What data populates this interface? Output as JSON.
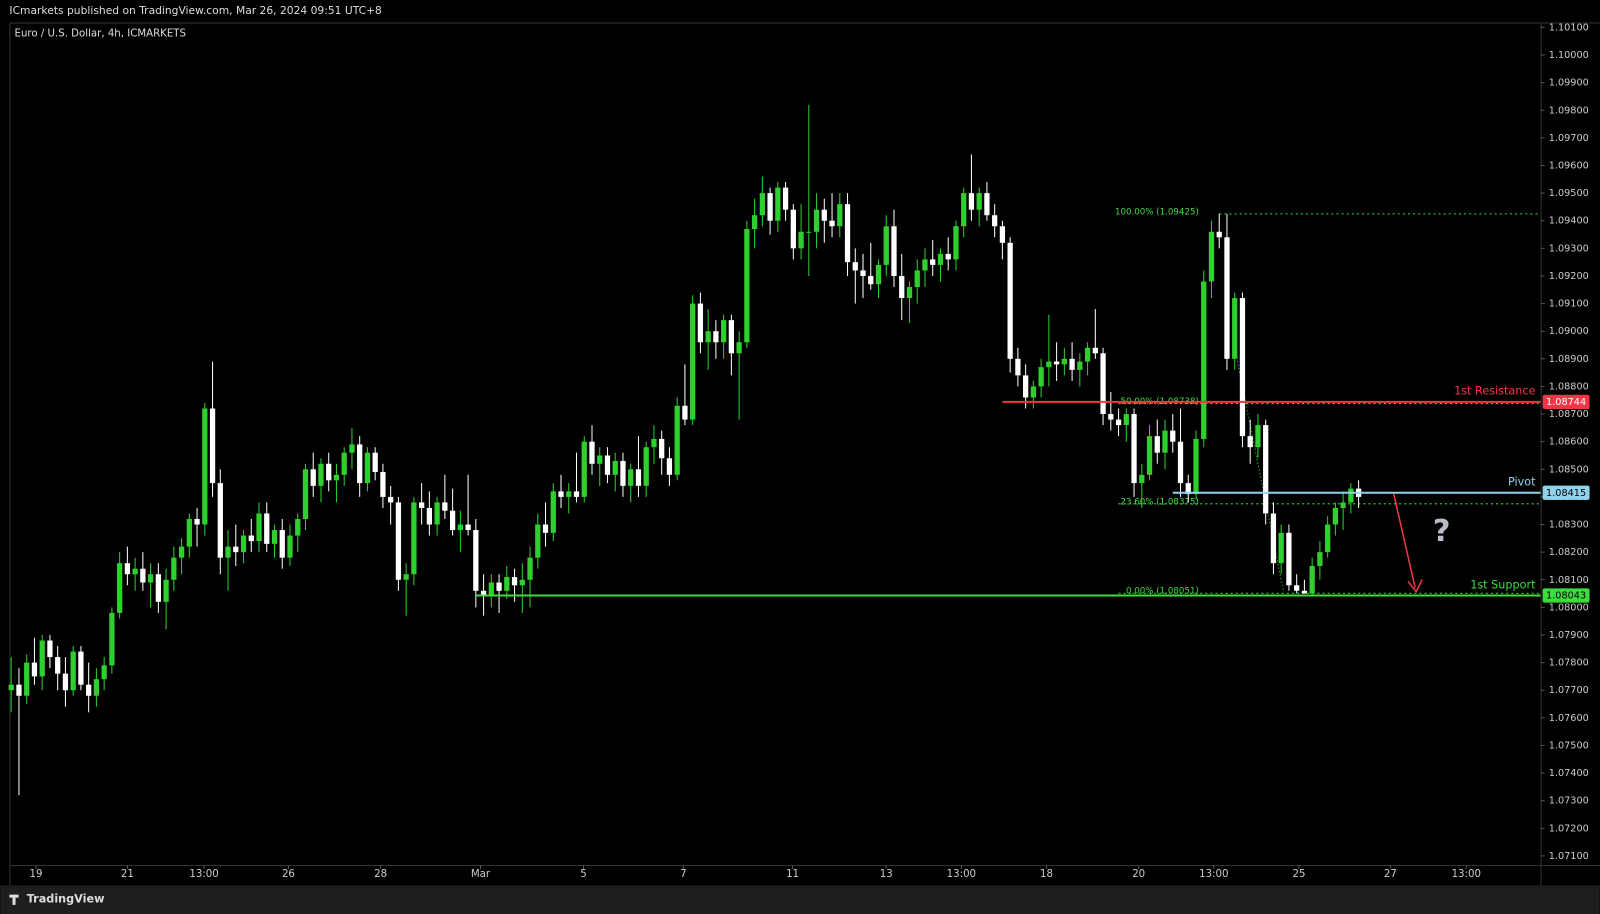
{
  "chart_data": {
    "type": "candlestick",
    "header": "ICmarkets published on TradingView.com, Mar 26, 2024 09:51 UTC+8",
    "title": "Euro / U.S. Dollar, 4h, ICMARKETS",
    "footer": "TradingView",
    "annotation": "?",
    "up_color": "#2fcf2f",
    "down_color": "#ffffff",
    "grid": false,
    "xlim": [
      -0.1,
      197.5
    ],
    "ylim": [
      1.07067,
      1.10118
    ],
    "yticks": [
      {
        "value": 1.071,
        "label": "1.07100"
      },
      {
        "value": 1.072,
        "label": "1.07200"
      },
      {
        "value": 1.073,
        "label": "1.07300"
      },
      {
        "value": 1.074,
        "label": "1.07400"
      },
      {
        "value": 1.075,
        "label": "1.07500"
      },
      {
        "value": 1.076,
        "label": "1.07600"
      },
      {
        "value": 1.077,
        "label": "1.07700"
      },
      {
        "value": 1.078,
        "label": "1.07800"
      },
      {
        "value": 1.079,
        "label": "1.07900"
      },
      {
        "value": 1.08,
        "label": "1.08000"
      },
      {
        "value": 1.081,
        "label": "1.08100"
      },
      {
        "value": 1.082,
        "label": "1.08200"
      },
      {
        "value": 1.083,
        "label": "1.08300"
      },
      {
        "value": 1.084,
        "label": "1.08400"
      },
      {
        "value": 1.085,
        "label": "1.08500"
      },
      {
        "value": 1.086,
        "label": "1.08600"
      },
      {
        "value": 1.087,
        "label": "1.08700"
      },
      {
        "value": 1.088,
        "label": "1.08800"
      },
      {
        "value": 1.089,
        "label": "1.08900"
      },
      {
        "value": 1.09,
        "label": "1.09000"
      },
      {
        "value": 1.091,
        "label": "1.09100"
      },
      {
        "value": 1.092,
        "label": "1.09200"
      },
      {
        "value": 1.093,
        "label": "1.09300"
      },
      {
        "value": 1.094,
        "label": "1.09400"
      },
      {
        "value": 1.095,
        "label": "1.09500"
      },
      {
        "value": 1.096,
        "label": "1.09600"
      },
      {
        "value": 1.097,
        "label": "1.09700"
      },
      {
        "value": 1.098,
        "label": "1.09800"
      },
      {
        "value": 1.099,
        "label": "1.09900"
      },
      {
        "value": 1.1,
        "label": "1.10000"
      },
      {
        "value": 1.101,
        "label": "1.10100"
      }
    ],
    "xticks": [
      {
        "value": 3.2,
        "label": "19"
      },
      {
        "value": 15,
        "label": "21"
      },
      {
        "value": 24.9,
        "label": "13:00"
      },
      {
        "value": 35.8,
        "label": "26"
      },
      {
        "value": 47.7,
        "label": "28"
      },
      {
        "value": 60.6,
        "label": "Mar"
      },
      {
        "value": 73.9,
        "label": "5"
      },
      {
        "value": 86.8,
        "label": "7"
      },
      {
        "value": 100.9,
        "label": "11"
      },
      {
        "value": 113,
        "label": "13"
      },
      {
        "value": 122.7,
        "label": "13:00"
      },
      {
        "value": 133.7,
        "label": "18"
      },
      {
        "value": 145.6,
        "label": "20"
      },
      {
        "value": 155.3,
        "label": "13:00"
      },
      {
        "value": 166.3,
        "label": "25"
      },
      {
        "value": 178.1,
        "label": "27"
      },
      {
        "value": 187.9,
        "label": "13:00"
      }
    ],
    "levels": [
      {
        "name": "1st Resistance",
        "value": 1.08744,
        "label": "1.08744",
        "start": 128,
        "color": "#f23645",
        "text_color": "#ffffff"
      },
      {
        "name": "Pivot",
        "value": 1.08415,
        "label": "1.08415",
        "start": 150,
        "color": "#8fd3ee",
        "text_color": "#000000"
      },
      {
        "name": "1st Support",
        "value": 1.08043,
        "label": "1.08043",
        "start": 60,
        "color": "#3ddc3d",
        "text_color": "#000000"
      }
    ],
    "fib_color": "#3ddc3d",
    "fibs": [
      {
        "label": "100.00% (1.09425)",
        "value": 1.09425,
        "start": 156
      },
      {
        "label": "50.00% (1.08738)",
        "value": 1.08738,
        "start": 143
      },
      {
        "label": "23.60% (1.08375)",
        "value": 1.08375,
        "start": 143
      },
      {
        "label": "0.00% (1.08051)",
        "value": 1.08051,
        "start": 143
      }
    ],
    "ohlc": [
      [
        1.077,
        1.0782,
        1.0762,
        1.0772
      ],
      [
        1.0772,
        1.0778,
        1.0732,
        1.0768
      ],
      [
        1.0768,
        1.0783,
        1.0765,
        1.078
      ],
      [
        1.078,
        1.0789,
        1.0772,
        1.0775
      ],
      [
        1.0775,
        1.079,
        1.077,
        1.0788
      ],
      [
        1.0788,
        1.079,
        1.0778,
        1.0782
      ],
      [
        1.0782,
        1.0786,
        1.077,
        1.0776
      ],
      [
        1.0776,
        1.0782,
        1.0764,
        1.077
      ],
      [
        1.077,
        1.0786,
        1.0768,
        1.0784
      ],
      [
        1.0784,
        1.0786,
        1.077,
        1.0772
      ],
      [
        1.0772,
        1.078,
        1.0762,
        1.0768
      ],
      [
        1.0768,
        1.0778,
        1.0764,
        1.0774
      ],
      [
        1.0774,
        1.0782,
        1.077,
        1.0779
      ],
      [
        1.0779,
        1.08,
        1.0776,
        1.0798
      ],
      [
        1.0798,
        1.082,
        1.0796,
        1.0816
      ],
      [
        1.0816,
        1.0822,
        1.0808,
        1.0812
      ],
      [
        1.0812,
        1.0818,
        1.0806,
        1.0814
      ],
      [
        1.0814,
        1.082,
        1.0806,
        1.0809
      ],
      [
        1.0809,
        1.0816,
        1.08,
        1.0812
      ],
      [
        1.0812,
        1.0816,
        1.0798,
        1.0802
      ],
      [
        1.0802,
        1.0814,
        1.0792,
        1.081
      ],
      [
        1.081,
        1.0822,
        1.0806,
        1.0818
      ],
      [
        1.0818,
        1.0825,
        1.0812,
        1.0822
      ],
      [
        1.0822,
        1.0834,
        1.0818,
        1.0832
      ],
      [
        1.0832,
        1.0836,
        1.0822,
        1.083
      ],
      [
        1.083,
        1.0874,
        1.0826,
        1.0872
      ],
      [
        1.0872,
        1.0889,
        1.084,
        1.0845
      ],
      [
        1.0845,
        1.085,
        1.0812,
        1.0818
      ],
      [
        1.0818,
        1.0828,
        1.0806,
        1.0822
      ],
      [
        1.0822,
        1.083,
        1.0815,
        1.082
      ],
      [
        1.082,
        1.0828,
        1.0816,
        1.0826
      ],
      [
        1.0826,
        1.0832,
        1.082,
        1.0824
      ],
      [
        1.0824,
        1.0838,
        1.082,
        1.0834
      ],
      [
        1.0834,
        1.0838,
        1.082,
        1.0823
      ],
      [
        1.0823,
        1.083,
        1.0818,
        1.0828
      ],
      [
        1.0828,
        1.0832,
        1.0814,
        1.0818
      ],
      [
        1.0818,
        1.083,
        1.0815,
        1.0826
      ],
      [
        1.0826,
        1.0834,
        1.082,
        1.0832
      ],
      [
        1.0832,
        1.0852,
        1.0828,
        1.085
      ],
      [
        1.085,
        1.0856,
        1.084,
        1.0844
      ],
      [
        1.0844,
        1.0854,
        1.0838,
        1.0852
      ],
      [
        1.0852,
        1.0856,
        1.0842,
        1.0846
      ],
      [
        1.0846,
        1.0852,
        1.0838,
        1.0848
      ],
      [
        1.0848,
        1.0858,
        1.0844,
        1.0856
      ],
      [
        1.0856,
        1.0865,
        1.085,
        1.0859
      ],
      [
        1.0859,
        1.0862,
        1.084,
        1.0845
      ],
      [
        1.0845,
        1.0858,
        1.0842,
        1.0856
      ],
      [
        1.0856,
        1.0858,
        1.0846,
        1.0849
      ],
      [
        1.0849,
        1.0852,
        1.0836,
        1.084
      ],
      [
        1.084,
        1.0844,
        1.083,
        1.0838
      ],
      [
        1.0838,
        1.084,
        1.0806,
        1.081
      ],
      [
        1.081,
        1.0816,
        1.0797,
        1.0812
      ],
      [
        1.0812,
        1.084,
        1.0808,
        1.0838
      ],
      [
        1.0838,
        1.0845,
        1.083,
        1.0836
      ],
      [
        1.0836,
        1.0842,
        1.0826,
        1.083
      ],
      [
        1.083,
        1.084,
        1.0826,
        1.0838
      ],
      [
        1.0838,
        1.0848,
        1.0832,
        1.0835
      ],
      [
        1.0835,
        1.0843,
        1.0826,
        1.0828
      ],
      [
        1.0828,
        1.0835,
        1.082,
        1.083
      ],
      [
        1.083,
        1.0848,
        1.0826,
        1.0828
      ],
      [
        1.0828,
        1.0832,
        1.08,
        1.0806
      ],
      [
        1.0806,
        1.0812,
        1.0797,
        1.0804
      ],
      [
        1.0804,
        1.0812,
        1.08,
        1.0809
      ],
      [
        1.0809,
        1.0812,
        1.0798,
        1.0806
      ],
      [
        1.0806,
        1.0815,
        1.0803,
        1.0811
      ],
      [
        1.0811,
        1.0814,
        1.0802,
        1.0808
      ],
      [
        1.0808,
        1.0816,
        1.0798,
        1.081
      ],
      [
        1.081,
        1.0822,
        1.08,
        1.0818
      ],
      [
        1.0818,
        1.0834,
        1.0814,
        1.083
      ],
      [
        1.083,
        1.0838,
        1.0822,
        1.0827
      ],
      [
        1.0827,
        1.0845,
        1.0824,
        1.0842
      ],
      [
        1.0842,
        1.0848,
        1.0836,
        1.084
      ],
      [
        1.084,
        1.0845,
        1.0834,
        1.0842
      ],
      [
        1.0842,
        1.0856,
        1.0838,
        1.084
      ],
      [
        1.084,
        1.0862,
        1.0838,
        1.086
      ],
      [
        1.086,
        1.0866,
        1.0848,
        1.0852
      ],
      [
        1.0852,
        1.0858,
        1.0844,
        1.0855
      ],
      [
        1.0855,
        1.0858,
        1.0845,
        1.0848
      ],
      [
        1.0848,
        1.0856,
        1.0842,
        1.0853
      ],
      [
        1.0853,
        1.0856,
        1.084,
        1.0844
      ],
      [
        1.0844,
        1.0852,
        1.0838,
        1.085
      ],
      [
        1.085,
        1.0862,
        1.084,
        1.0844
      ],
      [
        1.0844,
        1.086,
        1.084,
        1.0858
      ],
      [
        1.0858,
        1.0866,
        1.0852,
        1.0861
      ],
      [
        1.0861,
        1.0864,
        1.0848,
        1.0854
      ],
      [
        1.0854,
        1.0858,
        1.0844,
        1.0848
      ],
      [
        1.0848,
        1.0876,
        1.0846,
        1.0873
      ],
      [
        1.0873,
        1.0888,
        1.0866,
        1.0868
      ],
      [
        1.0868,
        1.0913,
        1.0866,
        1.091
      ],
      [
        1.091,
        1.0914,
        1.0892,
        1.0896
      ],
      [
        1.0896,
        1.0908,
        1.0886,
        1.09
      ],
      [
        1.09,
        1.0904,
        1.089,
        1.0896
      ],
      [
        1.0896,
        1.0906,
        1.089,
        1.0904
      ],
      [
        1.0904,
        1.0906,
        1.0884,
        1.0892
      ],
      [
        1.0892,
        1.09,
        1.0868,
        1.0896
      ],
      [
        1.0896,
        1.094,
        1.0894,
        1.0937
      ],
      [
        1.0937,
        1.0948,
        1.093,
        1.0942
      ],
      [
        1.0942,
        1.0956,
        1.0938,
        1.095
      ],
      [
        1.095,
        1.0952,
        1.0935,
        1.094
      ],
      [
        1.094,
        1.0954,
        1.0936,
        1.0952
      ],
      [
        1.0952,
        1.0954,
        1.094,
        1.0944
      ],
      [
        1.0944,
        1.0946,
        1.0926,
        1.093
      ],
      [
        1.093,
        1.0946,
        1.0926,
        1.0936
      ],
      [
        1.0936,
        1.0982,
        1.092,
        1.0936
      ],
      [
        1.0936,
        1.095,
        1.093,
        1.0944
      ],
      [
        1.0944,
        1.0948,
        1.0932,
        1.094
      ],
      [
        1.094,
        1.095,
        1.0934,
        1.0938
      ],
      [
        1.0938,
        1.095,
        1.0934,
        1.0946
      ],
      [
        1.0946,
        1.095,
        1.092,
        1.0925
      ],
      [
        1.0925,
        1.093,
        1.091,
        1.0922
      ],
      [
        1.0922,
        1.0928,
        1.0912,
        1.092
      ],
      [
        1.092,
        1.0932,
        1.0915,
        1.0917
      ],
      [
        1.0917,
        1.0926,
        1.0912,
        1.0924
      ],
      [
        1.0924,
        1.0942,
        1.092,
        1.0938
      ],
      [
        1.0938,
        1.0944,
        1.0916,
        1.092
      ],
      [
        1.092,
        1.0928,
        1.0904,
        1.0912
      ],
      [
        1.0912,
        1.0918,
        1.0903,
        1.0916
      ],
      [
        1.0916,
        1.0926,
        1.091,
        1.0922
      ],
      [
        1.0922,
        1.093,
        1.0916,
        1.0926
      ],
      [
        1.0926,
        1.0933,
        1.092,
        1.0924
      ],
      [
        1.0924,
        1.093,
        1.0918,
        1.0928
      ],
      [
        1.0928,
        1.0934,
        1.0922,
        1.0926
      ],
      [
        1.0926,
        1.094,
        1.0922,
        1.0938
      ],
      [
        1.0938,
        1.0952,
        1.0934,
        1.095
      ],
      [
        1.095,
        1.0964,
        1.094,
        1.0944
      ],
      [
        1.0944,
        1.0952,
        1.0938,
        1.095
      ],
      [
        1.095,
        1.0954,
        1.094,
        1.0942
      ],
      [
        1.0942,
        1.0946,
        1.0934,
        1.0938
      ],
      [
        1.0938,
        1.094,
        1.0926,
        1.0932
      ],
      [
        1.0932,
        1.0934,
        1.0885,
        1.089
      ],
      [
        1.089,
        1.0894,
        1.088,
        1.0884
      ],
      [
        1.0884,
        1.0888,
        1.0872,
        1.0876
      ],
      [
        1.0876,
        1.0882,
        1.0872,
        1.088
      ],
      [
        1.088,
        1.089,
        1.0876,
        1.0887
      ],
      [
        1.0887,
        1.0906,
        1.088,
        1.0889
      ],
      [
        1.0889,
        1.0896,
        1.0882,
        1.0888
      ],
      [
        1.0888,
        1.0894,
        1.0884,
        1.089
      ],
      [
        1.089,
        1.0896,
        1.0882,
        1.0886
      ],
      [
        1.0886,
        1.0892,
        1.088,
        1.0889
      ],
      [
        1.0889,
        1.0896,
        1.0884,
        1.0894
      ],
      [
        1.0894,
        1.0908,
        1.089,
        1.0892
      ],
      [
        1.0892,
        1.0894,
        1.0866,
        1.087
      ],
      [
        1.087,
        1.0878,
        1.0864,
        1.0868
      ],
      [
        1.0868,
        1.0872,
        1.0862,
        1.0866
      ],
      [
        1.0866,
        1.0872,
        1.086,
        1.087
      ],
      [
        1.087,
        1.0872,
        1.084,
        1.0845
      ],
      [
        1.0845,
        1.0852,
        1.0836,
        1.0848
      ],
      [
        1.0848,
        1.0866,
        1.0846,
        1.0862
      ],
      [
        1.0862,
        1.0868,
        1.0852,
        1.0856
      ],
      [
        1.0856,
        1.0868,
        1.085,
        1.0864
      ],
      [
        1.0864,
        1.087,
        1.0856,
        1.086
      ],
      [
        1.086,
        1.0872,
        1.084,
        1.0845
      ],
      [
        1.0845,
        1.0848,
        1.0838,
        1.0841
      ],
      [
        1.0841,
        1.0864,
        1.0839,
        1.0861
      ],
      [
        1.0861,
        1.0922,
        1.0858,
        1.0918
      ],
      [
        1.0918,
        1.094,
        1.0912,
        1.0936
      ],
      [
        1.0936,
        1.09425,
        1.093,
        1.0934
      ],
      [
        1.0934,
        1.09425,
        1.0886,
        1.089
      ],
      [
        1.089,
        1.0914,
        1.0886,
        1.0912
      ],
      [
        1.0912,
        1.0914,
        1.0858,
        1.0862
      ],
      [
        1.0862,
        1.0868,
        1.0852,
        1.0858
      ],
      [
        1.0858,
        1.087,
        1.0854,
        1.0866
      ],
      [
        1.0866,
        1.0868,
        1.083,
        1.0834
      ],
      [
        1.0834,
        1.0838,
        1.0812,
        1.0816
      ],
      [
        1.0816,
        1.083,
        1.0812,
        1.0827
      ],
      [
        1.0827,
        1.083,
        1.0806,
        1.0808
      ],
      [
        1.0808,
        1.0812,
        1.08051,
        1.0806
      ],
      [
        1.0806,
        1.081,
        1.0806,
        1.0805
      ],
      [
        1.0805,
        1.0818,
        1.0804,
        1.0815
      ],
      [
        1.0815,
        1.0824,
        1.081,
        1.082
      ],
      [
        1.082,
        1.0833,
        1.0818,
        1.083
      ],
      [
        1.083,
        1.0838,
        1.0826,
        1.0836
      ],
      [
        1.0836,
        1.0842,
        1.0828,
        1.0838
      ],
      [
        1.0838,
        1.0845,
        1.0834,
        1.0843
      ],
      [
        1.0843,
        1.0846,
        1.0836,
        1.084
      ]
    ]
  }
}
